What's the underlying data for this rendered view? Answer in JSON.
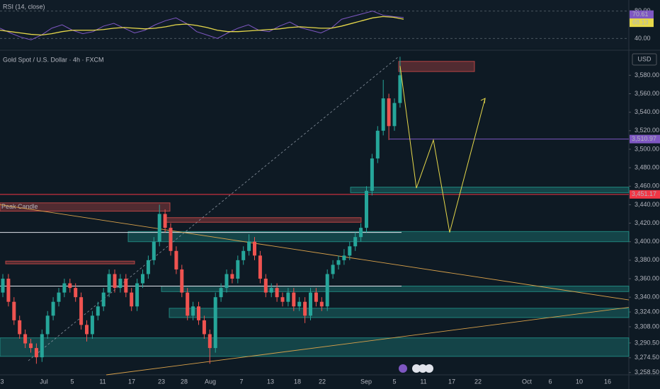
{
  "chart_data": [
    {
      "type": "line",
      "title": "RSI (14, close)",
      "ylim": [
        28,
        92
      ],
      "yticks": [
        {
          "value": 80,
          "label": "80.00"
        },
        {
          "value": 40,
          "label": "40.00"
        }
      ],
      "series": [
        {
          "color": "#7e57c2",
          "values": [
            55,
            48,
            42,
            38,
            45,
            55,
            60,
            52,
            47,
            50,
            58,
            62,
            55,
            48,
            52,
            60,
            66,
            70,
            62,
            50,
            45,
            40,
            48,
            55,
            60,
            52,
            50,
            58,
            64,
            56,
            52,
            48,
            55,
            68,
            72,
            76,
            80,
            74,
            72,
            70.61
          ],
          "value_labels": [
            "70.61"
          ]
        },
        {
          "color": "#e6d84a",
          "values": [
            52,
            50,
            48,
            46,
            45,
            47,
            50,
            52,
            52,
            52,
            53,
            55,
            56,
            55,
            54,
            55,
            57,
            60,
            61,
            59,
            56,
            52,
            50,
            50,
            51,
            52,
            53,
            54,
            56,
            57,
            56,
            55,
            55,
            58,
            62,
            66,
            70,
            72,
            71,
            68.13
          ],
          "value_labels": [
            "68.13"
          ]
        }
      ]
    },
    {
      "type": "candlestick",
      "title": "Gold Spot / U.S. Dollar · 4h · FXCM",
      "currency": "USD",
      "ylim": [
        3256,
        3604
      ],
      "yticks": [
        {
          "value": 3258.5,
          "label": "3,258.50"
        },
        {
          "value": 3274.5,
          "label": "3,274.50"
        },
        {
          "value": 3290.5,
          "label": "3,290.50"
        },
        {
          "value": 3308,
          "label": "3,308.00"
        },
        {
          "value": 3324,
          "label": "3,324.00"
        },
        {
          "value": 3340,
          "label": "3,340.00"
        },
        {
          "value": 3360,
          "label": "3,360.00"
        },
        {
          "value": 3380,
          "label": "3,380.00"
        },
        {
          "value": 3400,
          "label": "3,400.00"
        },
        {
          "value": 3420,
          "label": "3,420.00"
        },
        {
          "value": 3440,
          "label": "3,440.00"
        },
        {
          "value": 3460,
          "label": "3,460.00"
        },
        {
          "value": 3480,
          "label": "3,480.00"
        },
        {
          "value": 3500,
          "label": "3,500.00"
        },
        {
          "value": 3520,
          "label": "3,520.00"
        },
        {
          "value": 3540,
          "label": "3,540.00"
        },
        {
          "value": 3560,
          "label": "3,560.00"
        },
        {
          "value": 3580,
          "label": "3,580.00"
        }
      ],
      "dates": [
        "3",
        "Jul",
        "5",
        "11",
        "17",
        "23",
        "28",
        "Aug",
        "7",
        "13",
        "18",
        "22",
        "Sep",
        "5",
        "11",
        "17",
        "22",
        "Oct",
        "6",
        "10",
        "16"
      ],
      "up_color": "#26a69a",
      "down_color": "#ef5350",
      "open": [
        3345,
        3360,
        3335,
        3315,
        3300,
        3290,
        3285,
        3275,
        3300,
        3320,
        3335,
        3345,
        3355,
        3350,
        3340,
        3310,
        3300,
        3320,
        3330,
        3345,
        3365,
        3350,
        3360,
        3345,
        3330,
        3355,
        3365,
        3380,
        3400,
        3430,
        3415,
        3390,
        3370,
        3345,
        3320,
        3330,
        3315,
        3300,
        3285,
        3340,
        3350,
        3365,
        3360,
        3380,
        3390,
        3400,
        3385,
        3360,
        3345,
        3350,
        3340,
        3335,
        3345,
        3330,
        3335,
        3320,
        3345,
        3335,
        3330,
        3365,
        3375,
        3380,
        3385,
        3395,
        3405,
        3415,
        3455,
        3490,
        3520,
        3555,
        3525,
        3550
      ],
      "high": [
        3365,
        3365,
        3340,
        3320,
        3305,
        3295,
        3290,
        3305,
        3325,
        3340,
        3350,
        3360,
        3360,
        3355,
        3345,
        3315,
        3325,
        3335,
        3350,
        3370,
        3370,
        3365,
        3365,
        3350,
        3360,
        3370,
        3385,
        3405,
        3440,
        3435,
        3420,
        3395,
        3375,
        3350,
        3335,
        3335,
        3320,
        3305,
        3345,
        3355,
        3370,
        3370,
        3385,
        3395,
        3408,
        3405,
        3390,
        3365,
        3355,
        3355,
        3345,
        3350,
        3350,
        3340,
        3340,
        3350,
        3350,
        3340,
        3370,
        3380,
        3385,
        3392,
        3400,
        3410,
        3420,
        3460,
        3495,
        3525,
        3575,
        3560,
        3555,
        3600
      ],
      "low": [
        3340,
        3330,
        3310,
        3295,
        3285,
        3280,
        3268,
        3270,
        3295,
        3315,
        3330,
        3340,
        3345,
        3335,
        3305,
        3292,
        3295,
        3315,
        3325,
        3340,
        3345,
        3345,
        3340,
        3325,
        3325,
        3350,
        3360,
        3375,
        3395,
        3410,
        3385,
        3365,
        3340,
        3315,
        3315,
        3310,
        3295,
        3268,
        3280,
        3335,
        3345,
        3355,
        3355,
        3375,
        3385,
        3380,
        3355,
        3340,
        3340,
        3335,
        3330,
        3330,
        3325,
        3325,
        3312,
        3315,
        3330,
        3325,
        3325,
        3360,
        3370,
        3375,
        3380,
        3390,
        3400,
        3410,
        3450,
        3485,
        3515,
        3510,
        3520,
        3545
      ],
      "close": [
        3360,
        3335,
        3315,
        3300,
        3290,
        3285,
        3275,
        3300,
        3320,
        3335,
        3345,
        3355,
        3350,
        3340,
        3310,
        3300,
        3320,
        3330,
        3345,
        3365,
        3350,
        3360,
        3345,
        3330,
        3355,
        3365,
        3380,
        3400,
        3430,
        3415,
        3390,
        3370,
        3345,
        3320,
        3330,
        3315,
        3300,
        3285,
        3340,
        3350,
        3365,
        3360,
        3380,
        3390,
        3400,
        3385,
        3360,
        3345,
        3350,
        3340,
        3335,
        3345,
        3330,
        3335,
        3320,
        3345,
        3335,
        3330,
        3365,
        3375,
        3380,
        3385,
        3395,
        3405,
        3415,
        3455,
        3490,
        3520,
        3555,
        3525,
        3550,
        3580
      ],
      "levels": [
        {
          "value": 3510.97,
          "label": "3,510.97",
          "color": "#7e57c2"
        },
        {
          "value": 3451.17,
          "label": "3,451.17",
          "color": "#f23645"
        }
      ],
      "zones": [
        {
          "bottom": 3453,
          "top": 3459,
          "color": "#26a69a"
        },
        {
          "bottom": 3400,
          "top": 3411,
          "color": "#26a69a"
        },
        {
          "bottom": 3346,
          "top": 3352,
          "color": "#26a69a"
        },
        {
          "bottom": 3318,
          "top": 3328,
          "color": "#26a69a"
        },
        {
          "bottom": 3276,
          "top": 3296,
          "color": "#26a69a"
        },
        {
          "bottom": 3584,
          "top": 3595,
          "color": "#ef5350"
        },
        {
          "bottom": 3433,
          "top": 3442,
          "color": "#ef5350",
          "label": "Peak Candle"
        },
        {
          "bottom": 3421,
          "top": 3426,
          "color": "#ef5350"
        },
        {
          "bottom": 3376,
          "top": 3379,
          "color": "#ef5350"
        }
      ],
      "hlines": [
        3410,
        3352
      ],
      "trendlines": [
        {
          "start": 3440,
          "end": 3337
        },
        {
          "start": 3256,
          "end": 3329
        }
      ],
      "projection": [
        3590,
        3458,
        3510,
        3410,
        3555
      ]
    }
  ]
}
